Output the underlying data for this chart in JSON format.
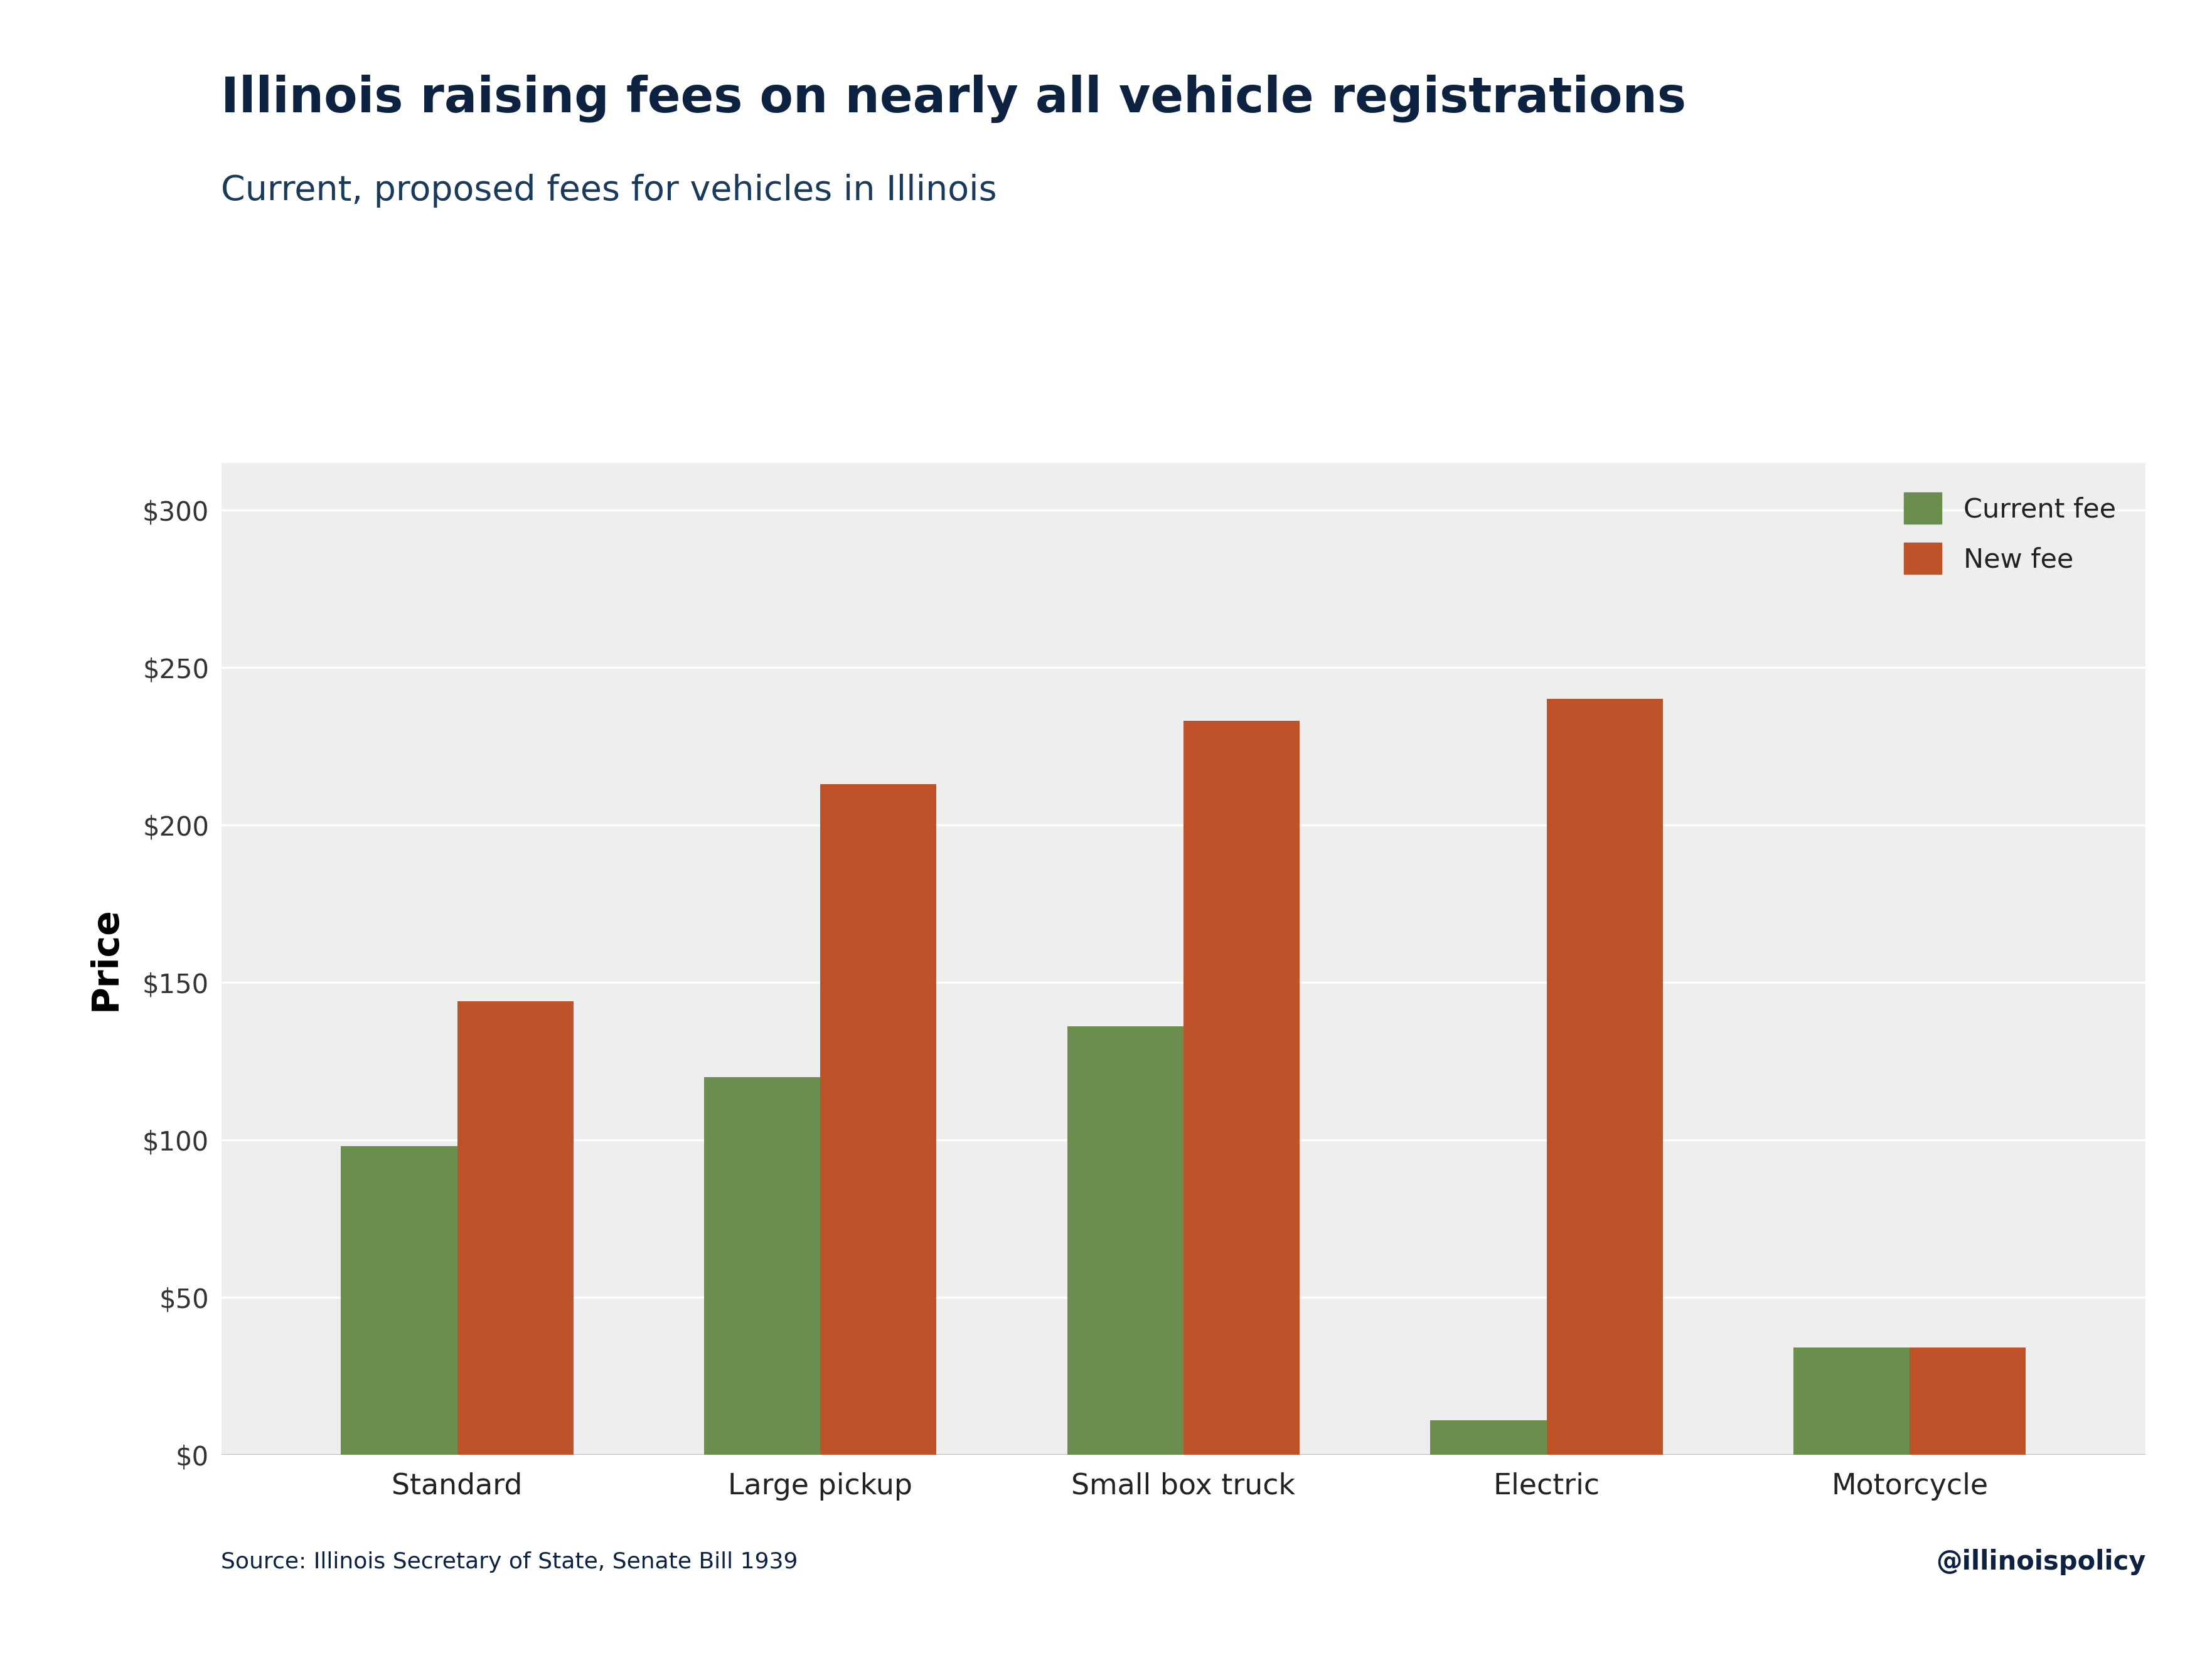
{
  "title": "Illinois raising fees on nearly all vehicle registrations",
  "subtitle": "Current, proposed fees for vehicles in Illinois",
  "ylabel": "Price",
  "source": "Source: Illinois Secretary of State, Senate Bill 1939",
  "handle": "@illinoispolicy",
  "categories": [
    "Standard",
    "Large pickup",
    "Small box truck",
    "Electric",
    "Motorcycle"
  ],
  "current_fees": [
    98,
    120,
    136,
    11,
    34
  ],
  "new_fees": [
    144,
    213,
    233,
    240,
    34
  ],
  "current_color": "#6b8e4e",
  "new_color": "#c0522a",
  "title_color": "#0d2240",
  "subtitle_color": "#1a3a5c",
  "source_color": "#0d2240",
  "handle_color": "#0d2240",
  "ylabel_color": "#000000",
  "plot_bg_color": "#eeeeee",
  "fig_bg_color": "#ffffff",
  "yticks": [
    0,
    50,
    100,
    150,
    200,
    250,
    300
  ],
  "ytick_labels": [
    "$0",
    "$50",
    "$100",
    "$150",
    "$200",
    "$250",
    "$300"
  ],
  "ylim": [
    0,
    315
  ],
  "bar_width": 0.32,
  "legend_labels": [
    "Current fee",
    "New fee"
  ]
}
